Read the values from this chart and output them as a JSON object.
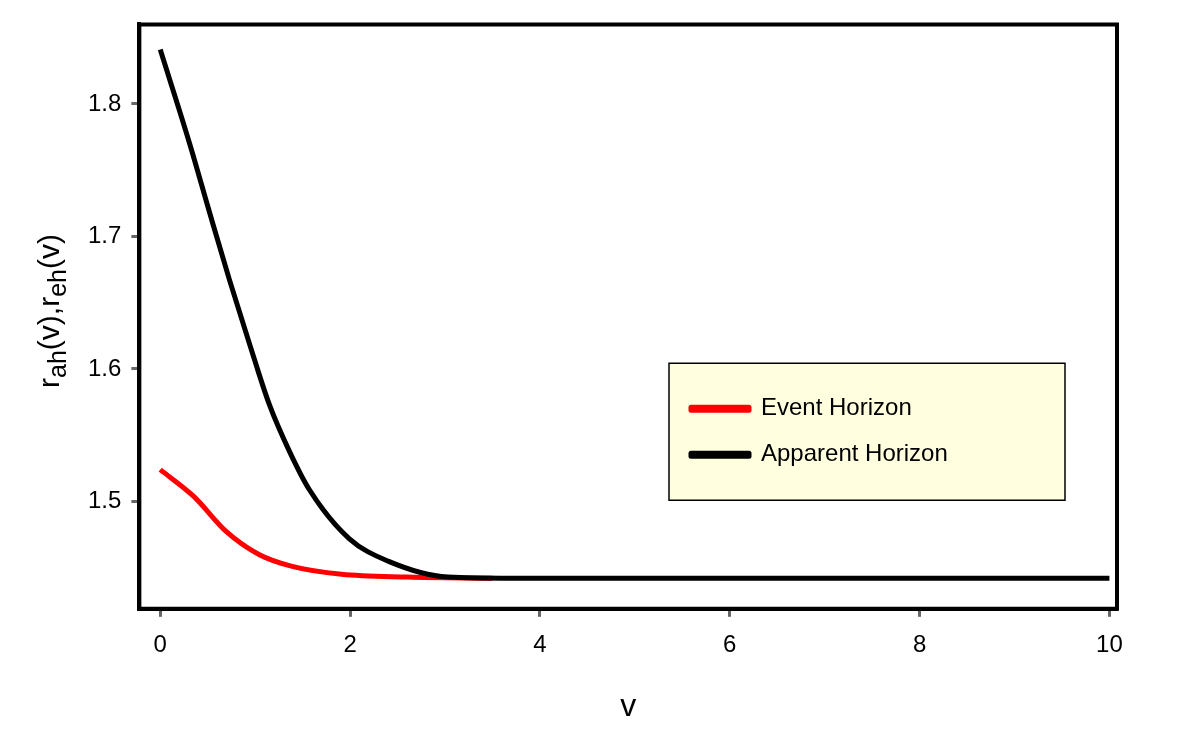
{
  "chart_data": {
    "type": "line",
    "xlabel": "v",
    "ylabel": "r$_{ah}$(v),r$_{eh}$(v)",
    "xlim": [
      -0.22,
      10.08
    ],
    "ylim": [
      1.419,
      1.86
    ],
    "xticks": [
      0,
      2,
      4,
      6,
      8,
      10
    ],
    "yticks": [
      1.5,
      1.6,
      1.7,
      1.8
    ],
    "grid": false,
    "legend": "right",
    "marker": "none",
    "line_style": "solid",
    "series": [
      {
        "name": "Event Horizon",
        "color": "#ff0000",
        "x": [
          0,
          0.35,
          0.7,
          1.04,
          1.39,
          1.91,
          2.61,
          3.5
        ],
        "values": [
          1.524,
          1.504,
          1.477,
          1.46,
          1.451,
          1.445,
          1.443,
          1.442
        ]
      },
      {
        "name": "Apparent Horizon",
        "color": "#000000",
        "x": [
          0,
          0.31,
          0.52,
          0.73,
          0.94,
          1.15,
          1.36,
          1.57,
          1.99,
          2.4,
          3.03,
          4,
          5,
          7,
          10
        ],
        "values": [
          1.841,
          1.77,
          1.718,
          1.667,
          1.619,
          1.573,
          1.538,
          1.509,
          1.472,
          1.455,
          1.443,
          1.442,
          1.442,
          1.442,
          1.442
        ]
      }
    ]
  }
}
